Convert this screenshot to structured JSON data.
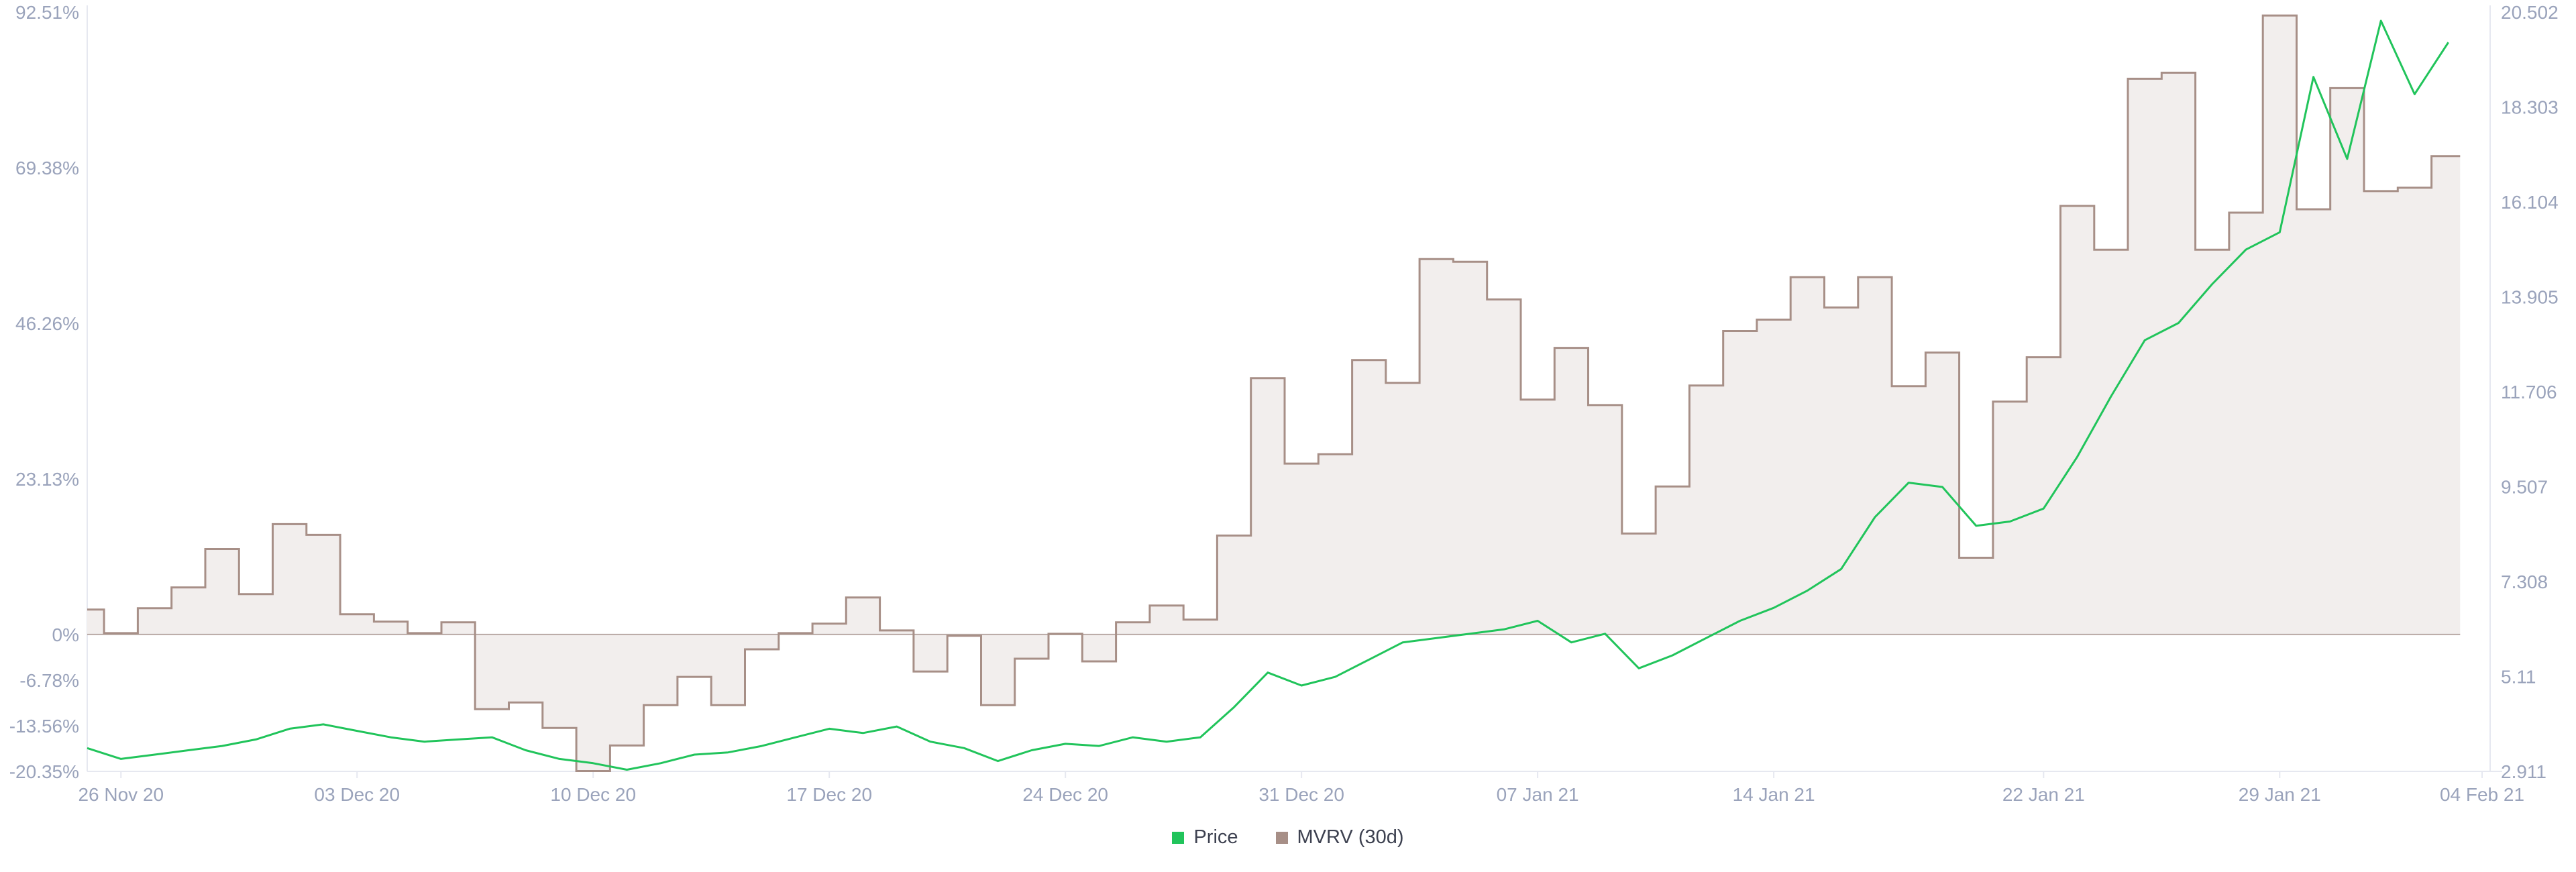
{
  "colors": {
    "price": "#21c45b",
    "mvrv_line": "#a78f87",
    "mvrv_fill": "#f2eeed",
    "axis": "#e6e8f0",
    "tick": "#9aa3bb",
    "zero_line": "#b9aaa5"
  },
  "legend": [
    {
      "label": "Price",
      "color": "#21c45b"
    },
    {
      "label": "MVRV (30d)",
      "color": "#a78f87"
    }
  ],
  "chart_data": {
    "type": "line",
    "title": "",
    "x_start": "25 Nov 20",
    "x_end": "04 Feb 21",
    "x_tick_labels": [
      "26 Nov 20",
      "03 Dec 20",
      "10 Dec 20",
      "17 Dec 20",
      "24 Dec 20",
      "31 Dec 20",
      "07 Jan 21",
      "14 Jan 21",
      "22 Jan 21",
      "29 Jan 21",
      "04 Feb 21"
    ],
    "y_left": {
      "tick_labels": [
        "92.51%",
        "69.38%",
        "46.26%",
        "23.13%",
        "0%",
        "-6.78%",
        "-13.56%",
        "-20.35%"
      ],
      "tick_values": [
        92.51,
        69.38,
        46.26,
        23.13,
        0,
        -6.78,
        -13.56,
        -20.35
      ]
    },
    "y_right": {
      "tick_labels": [
        "20.502",
        "18.303",
        "16.104",
        "13.905",
        "11.706",
        "9.507",
        "7.308",
        "5.11",
        "2.911"
      ],
      "tick_values": [
        20.502,
        18.303,
        16.104,
        13.905,
        11.706,
        9.507,
        7.308,
        5.11,
        2.911
      ]
    },
    "series": [
      {
        "name": "MVRV (30d)",
        "axis": "left",
        "style": "step-area",
        "x": [
          "25 Nov 20",
          "26 Nov 20",
          "27 Nov 20",
          "28 Nov 20",
          "29 Nov 20",
          "30 Nov 20",
          "01 Dec 20",
          "02 Dec 20",
          "03 Dec 20",
          "04 Dec 20",
          "05 Dec 20",
          "06 Dec 20",
          "07 Dec 20",
          "08 Dec 20",
          "09 Dec 20",
          "10 Dec 20",
          "11 Dec 20",
          "12 Dec 20",
          "13 Dec 20",
          "14 Dec 20",
          "15 Dec 20",
          "16 Dec 20",
          "17 Dec 20",
          "18 Dec 20",
          "19 Dec 20",
          "20 Dec 20",
          "21 Dec 20",
          "22 Dec 20",
          "23 Dec 20",
          "24 Dec 20",
          "25 Dec 20",
          "26 Dec 20",
          "27 Dec 20",
          "28 Dec 20",
          "29 Dec 20",
          "30 Dec 20",
          "31 Dec 20",
          "01 Jan 21",
          "02 Jan 21",
          "03 Jan 21",
          "04 Jan 21",
          "05 Jan 21",
          "06 Jan 21",
          "07 Jan 21",
          "08 Jan 21",
          "09 Jan 21",
          "10 Jan 21",
          "11 Jan 21",
          "12 Jan 21",
          "13 Jan 21",
          "14 Jan 21",
          "15 Jan 21",
          "16 Jan 21",
          "17 Jan 21",
          "18 Jan 21",
          "19 Jan 21",
          "20 Jan 21",
          "21 Jan 21",
          "22 Jan 21",
          "23 Jan 21",
          "24 Jan 21",
          "25 Jan 21",
          "26 Jan 21",
          "27 Jan 21",
          "28 Jan 21",
          "29 Jan 21",
          "30 Jan 21",
          "31 Jan 21",
          "01 Feb 21",
          "02 Feb 21",
          "03 Feb 21"
        ],
        "values": [
          3.7,
          0.2,
          3.9,
          7.0,
          12.7,
          6.0,
          16.4,
          14.8,
          3.0,
          1.9,
          0.2,
          1.8,
          -11.1,
          -10.1,
          -13.9,
          -20.3,
          -16.5,
          -10.5,
          -6.3,
          -10.5,
          -2.2,
          0.2,
          1.6,
          5.5,
          0.6,
          -5.5,
          -0.2,
          -10.5,
          -3.6,
          0.1,
          -4.0,
          1.8,
          4.3,
          2.2,
          14.7,
          38.1,
          25.4,
          26.8,
          40.8,
          37.4,
          55.8,
          55.4,
          49.8,
          34.9,
          42.6,
          34.1,
          15.0,
          22.0,
          37.0,
          45.1,
          46.8,
          53.1,
          48.6,
          53.1,
          36.9,
          41.9,
          11.4,
          34.6,
          41.2,
          63.7,
          57.2,
          82.6,
          83.5,
          57.2,
          62.7,
          92.0,
          63.2,
          81.2,
          65.9,
          66.4,
          71.1
        ]
      },
      {
        "name": "Price",
        "axis": "right",
        "style": "line",
        "x": [
          "25 Nov 20",
          "26 Nov 20",
          "27 Nov 20",
          "28 Nov 20",
          "29 Nov 20",
          "30 Nov 20",
          "01 Dec 20",
          "02 Dec 20",
          "03 Dec 20",
          "04 Dec 20",
          "05 Dec 20",
          "06 Dec 20",
          "07 Dec 20",
          "08 Dec 20",
          "09 Dec 20",
          "10 Dec 20",
          "11 Dec 20",
          "12 Dec 20",
          "13 Dec 20",
          "14 Dec 20",
          "15 Dec 20",
          "16 Dec 20",
          "17 Dec 20",
          "18 Dec 20",
          "19 Dec 20",
          "20 Dec 20",
          "21 Dec 20",
          "22 Dec 20",
          "23 Dec 20",
          "24 Dec 20",
          "25 Dec 20",
          "26 Dec 20",
          "27 Dec 20",
          "28 Dec 20",
          "29 Dec 20",
          "30 Dec 20",
          "31 Dec 20",
          "01 Jan 21",
          "02 Jan 21",
          "03 Jan 21",
          "04 Jan 21",
          "05 Jan 21",
          "06 Jan 21",
          "07 Jan 21",
          "08 Jan 21",
          "09 Jan 21",
          "10 Jan 21",
          "11 Jan 21",
          "12 Jan 21",
          "13 Jan 21",
          "14 Jan 21",
          "15 Jan 21",
          "16 Jan 21",
          "17 Jan 21",
          "18 Jan 21",
          "19 Jan 21",
          "20 Jan 21",
          "21 Jan 21",
          "22 Jan 21",
          "23 Jan 21",
          "24 Jan 21",
          "25 Jan 21",
          "26 Jan 21",
          "27 Jan 21",
          "28 Jan 21",
          "29 Jan 21",
          "30 Jan 21",
          "31 Jan 21",
          "01 Feb 21",
          "02 Feb 21",
          "03 Feb 21"
        ],
        "values": [
          3.45,
          3.2,
          3.3,
          3.4,
          3.5,
          3.65,
          3.9,
          4.0,
          3.85,
          3.7,
          3.6,
          3.65,
          3.7,
          3.4,
          3.2,
          3.1,
          2.95,
          3.1,
          3.3,
          3.35,
          3.5,
          3.7,
          3.9,
          3.8,
          3.95,
          3.6,
          3.45,
          3.15,
          3.4,
          3.55,
          3.5,
          3.7,
          3.6,
          3.7,
          4.4,
          5.2,
          4.9,
          5.1,
          5.5,
          5.9,
          6.0,
          6.1,
          6.2,
          6.4,
          5.9,
          6.1,
          5.3,
          5.6,
          6.0,
          6.4,
          6.7,
          7.1,
          7.6,
          8.8,
          9.6,
          9.5,
          8.6,
          8.7,
          9.0,
          10.2,
          11.6,
          12.9,
          13.3,
          14.2,
          15.0,
          15.4,
          19.0,
          17.1,
          20.3,
          18.6,
          19.8
        ]
      }
    ]
  }
}
